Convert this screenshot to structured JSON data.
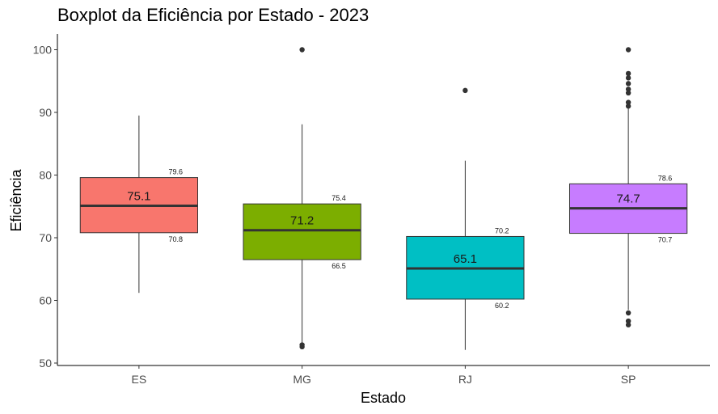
{
  "chart_data": {
    "type": "boxplot",
    "title": "Boxplot da Eficiência por Estado - 2023",
    "xlabel": "Estado",
    "ylabel": "Eficiência",
    "ylim": [
      49.5,
      102.5
    ],
    "yticks": [
      50,
      60,
      70,
      80,
      90,
      100
    ],
    "grid": false,
    "legend": "none",
    "categories": [
      "ES",
      "MG",
      "RJ",
      "SP"
    ],
    "boxes": [
      {
        "category": "ES",
        "color": "#F8766D",
        "whisker_low": 61.2,
        "q1": 70.8,
        "median": 75.1,
        "q3": 79.6,
        "whisker_high": 89.5,
        "outliers": [],
        "q1_label": "70.8",
        "median_label": "75.1",
        "q3_label": "79.6"
      },
      {
        "category": "MG",
        "color": "#7CAE00",
        "whisker_low": 53.2,
        "q1": 66.5,
        "median": 71.2,
        "q3": 75.4,
        "whisker_high": 88.1,
        "outliers": [
          100,
          52.9,
          52.6
        ],
        "q1_label": "66.5",
        "median_label": "71.2",
        "q3_label": "75.4"
      },
      {
        "category": "RJ",
        "color": "#00BFC4",
        "whisker_low": 52.1,
        "q1": 60.2,
        "median": 65.1,
        "q3": 70.2,
        "whisker_high": 82.3,
        "outliers": [
          93.5
        ],
        "q1_label": "60.2",
        "median_label": "65.1",
        "q3_label": "70.2"
      },
      {
        "category": "SP",
        "color": "#C77CFF",
        "whisker_low": 58.5,
        "q1": 70.7,
        "median": 74.7,
        "q3": 78.6,
        "whisker_high": 90.6,
        "outliers": [
          100,
          96.2,
          95.5,
          94.6,
          93.7,
          93.1,
          91.6,
          91.0,
          58.0,
          56.7,
          56.1
        ],
        "q1_label": "70.7",
        "median_label": "74.7",
        "q3_label": "78.6"
      }
    ]
  }
}
